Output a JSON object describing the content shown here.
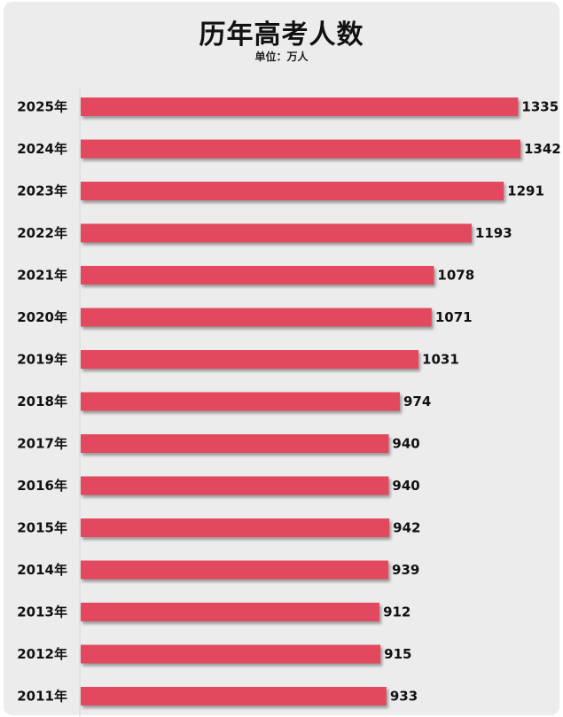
{
  "title": "历年高考人数",
  "subtitle": "单位：万人",
  "chart_data": {
    "type": "bar",
    "orientation": "horizontal",
    "title": "历年高考人数",
    "subtitle": "单位：万人",
    "categories": [
      "2025年",
      "2024年",
      "2023年",
      "2022年",
      "2021年",
      "2020年",
      "2019年",
      "2018年",
      "2017年",
      "2016年",
      "2015年",
      "2014年",
      "2013年",
      "2012年",
      "2011年"
    ],
    "values": [
      1335,
      1342,
      1291,
      1193,
      1078,
      1071,
      1031,
      974,
      940,
      940,
      942,
      939,
      912,
      915,
      933
    ],
    "xlim": [
      0,
      1342
    ],
    "grid": false,
    "bar_color": "#e24a5e"
  }
}
